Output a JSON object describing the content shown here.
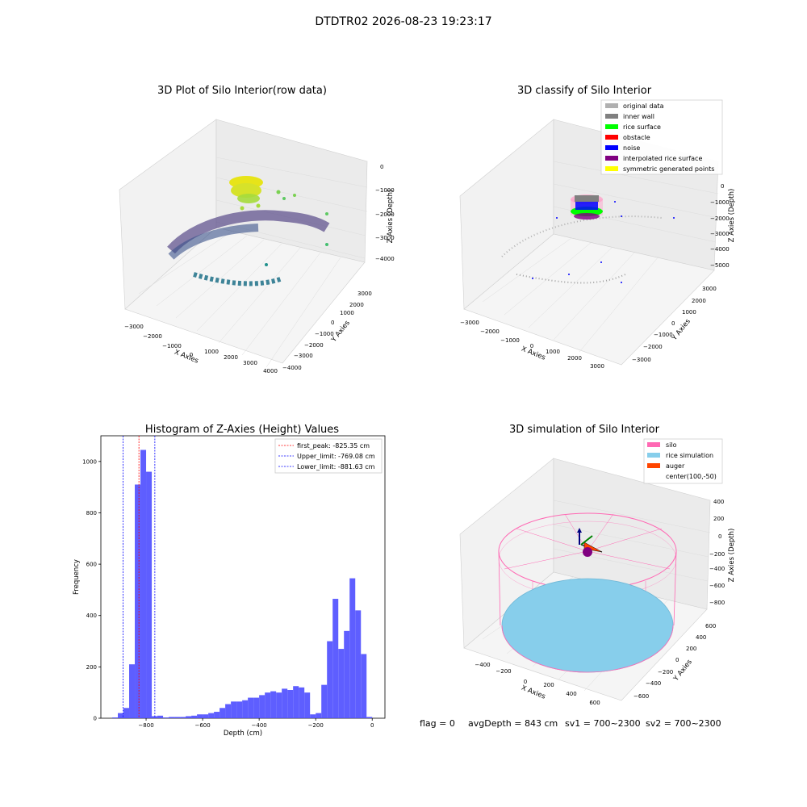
{
  "suptitle": "DTDTR02 2026-08-23 19:23:17",
  "panels": {
    "raw": {
      "title": "3D Plot of Silo Interior(row data)",
      "xlabel": "X Axies",
      "ylabel": "Y Axies",
      "zlabel": "Z Axies (Depth)",
      "x_ticks": [
        "−3000",
        "−2000",
        "−1000",
        "0",
        "1000",
        "2000",
        "3000",
        "4000"
      ],
      "y_ticks": [
        "3000",
        "2000",
        "1000",
        "0",
        "−1000",
        "−2000",
        "−3000",
        "−4000"
      ],
      "z_ticks": [
        "0",
        "−1000",
        "−2000",
        "−3000",
        "−4000"
      ]
    },
    "classify": {
      "title": "3D classify of Silo Interior",
      "xlabel": "X Axies",
      "ylabel": "Y Axies",
      "zlabel": "Z Axies (Depth)",
      "x_ticks": [
        "−3000",
        "−2000",
        "−1000",
        "0",
        "1000",
        "2000",
        "3000"
      ],
      "y_ticks": [
        "3000",
        "2000",
        "1000",
        "0",
        "−1000",
        "−2000",
        "−3000"
      ],
      "z_ticks": [
        "0",
        "−1000",
        "−2000",
        "−3000",
        "−4000",
        "−5000"
      ],
      "legend": [
        {
          "label": "original data",
          "color": "#b0b0b0"
        },
        {
          "label": "inner wall",
          "color": "#808080"
        },
        {
          "label": "rice surface",
          "color": "#00ff00"
        },
        {
          "label": "obstacle",
          "color": "#ff0000"
        },
        {
          "label": "noise",
          "color": "#0000ff"
        },
        {
          "label": "interpolated rice surface",
          "color": "#800080"
        },
        {
          "label": "symmetric generated points",
          "color": "#ffff00"
        }
      ]
    },
    "simulation": {
      "title": "3D simulation of Silo Interior",
      "xlabel": "X Axies",
      "ylabel": "Y Axies",
      "zlabel": "Z Axies (Depth)",
      "x_ticks": [
        "−400",
        "−200",
        "0",
        "200",
        "400",
        "600"
      ],
      "y_ticks": [
        "600",
        "400",
        "200",
        "0",
        "−200",
        "−400",
        "−600"
      ],
      "z_ticks": [
        "400",
        "200",
        "0",
        "−200",
        "−400",
        "−600",
        "−800"
      ],
      "legend": [
        {
          "label": "silo",
          "color": "#ff69b4"
        },
        {
          "label": "rice simulation",
          "color": "#87ceeb"
        },
        {
          "label": "auger",
          "color": "#ff4500"
        },
        {
          "label": "center(100,-50)",
          "color": ""
        }
      ]
    }
  },
  "chart_data": {
    "type": "bar",
    "title": "Histogram of Z-Axies (Height) Values",
    "xlabel": "Depth (cm)",
    "ylabel": "Frequency",
    "xlim": [
      -960,
      45
    ],
    "ylim": [
      0,
      1100
    ],
    "x_ticks": [
      -800,
      -600,
      -400,
      -200,
      0
    ],
    "y_ticks": [
      0,
      200,
      400,
      600,
      800,
      1000
    ],
    "bar_color": "#4d4dff",
    "bins": [
      [
        -920,
        -900,
        3
      ],
      [
        -900,
        -880,
        20
      ],
      [
        -880,
        -860,
        40
      ],
      [
        -860,
        -840,
        210
      ],
      [
        -840,
        -820,
        910
      ],
      [
        -820,
        -800,
        1045
      ],
      [
        -800,
        -780,
        960
      ],
      [
        -780,
        -760,
        8
      ],
      [
        -760,
        -740,
        10
      ],
      [
        -740,
        -720,
        3
      ],
      [
        -720,
        -700,
        5
      ],
      [
        -700,
        -680,
        5
      ],
      [
        -680,
        -660,
        5
      ],
      [
        -660,
        -640,
        8
      ],
      [
        -640,
        -620,
        10
      ],
      [
        -620,
        -600,
        15
      ],
      [
        -600,
        -580,
        15
      ],
      [
        -580,
        -560,
        20
      ],
      [
        -560,
        -540,
        25
      ],
      [
        -540,
        -520,
        40
      ],
      [
        -520,
        -500,
        55
      ],
      [
        -500,
        -480,
        65
      ],
      [
        -480,
        -460,
        65
      ],
      [
        -460,
        -440,
        70
      ],
      [
        -440,
        -420,
        80
      ],
      [
        -420,
        -400,
        80
      ],
      [
        -400,
        -380,
        90
      ],
      [
        -380,
        -360,
        100
      ],
      [
        -360,
        -340,
        105
      ],
      [
        -340,
        -320,
        100
      ],
      [
        -320,
        -300,
        115
      ],
      [
        -300,
        -280,
        110
      ],
      [
        -280,
        -260,
        125
      ],
      [
        -260,
        -240,
        120
      ],
      [
        -240,
        -220,
        100
      ],
      [
        -220,
        -200,
        15
      ],
      [
        -200,
        -180,
        20
      ],
      [
        -180,
        -160,
        130
      ],
      [
        -160,
        -140,
        300
      ],
      [
        -140,
        -120,
        465
      ],
      [
        -120,
        -100,
        270
      ],
      [
        -100,
        -80,
        340
      ],
      [
        -80,
        -60,
        545
      ],
      [
        -60,
        -40,
        420
      ],
      [
        -40,
        -20,
        250
      ],
      [
        -20,
        0,
        5
      ]
    ],
    "lines": [
      {
        "label": "first_peak: -825.35 cm",
        "x": -825.35,
        "color": "#ff0000"
      },
      {
        "label": "Upper_limit: -769.08 cm",
        "x": -769.08,
        "color": "#0000ff"
      },
      {
        "label": "Lower_limit: -881.63 cm",
        "x": -881.63,
        "color": "#0000ff"
      }
    ]
  },
  "footer": {
    "flag": "flag = 0",
    "avg": "avgDepth = 843 cm",
    "sv1": "sv1 = 700~2300",
    "sv2": "sv2 = 700~2300"
  }
}
